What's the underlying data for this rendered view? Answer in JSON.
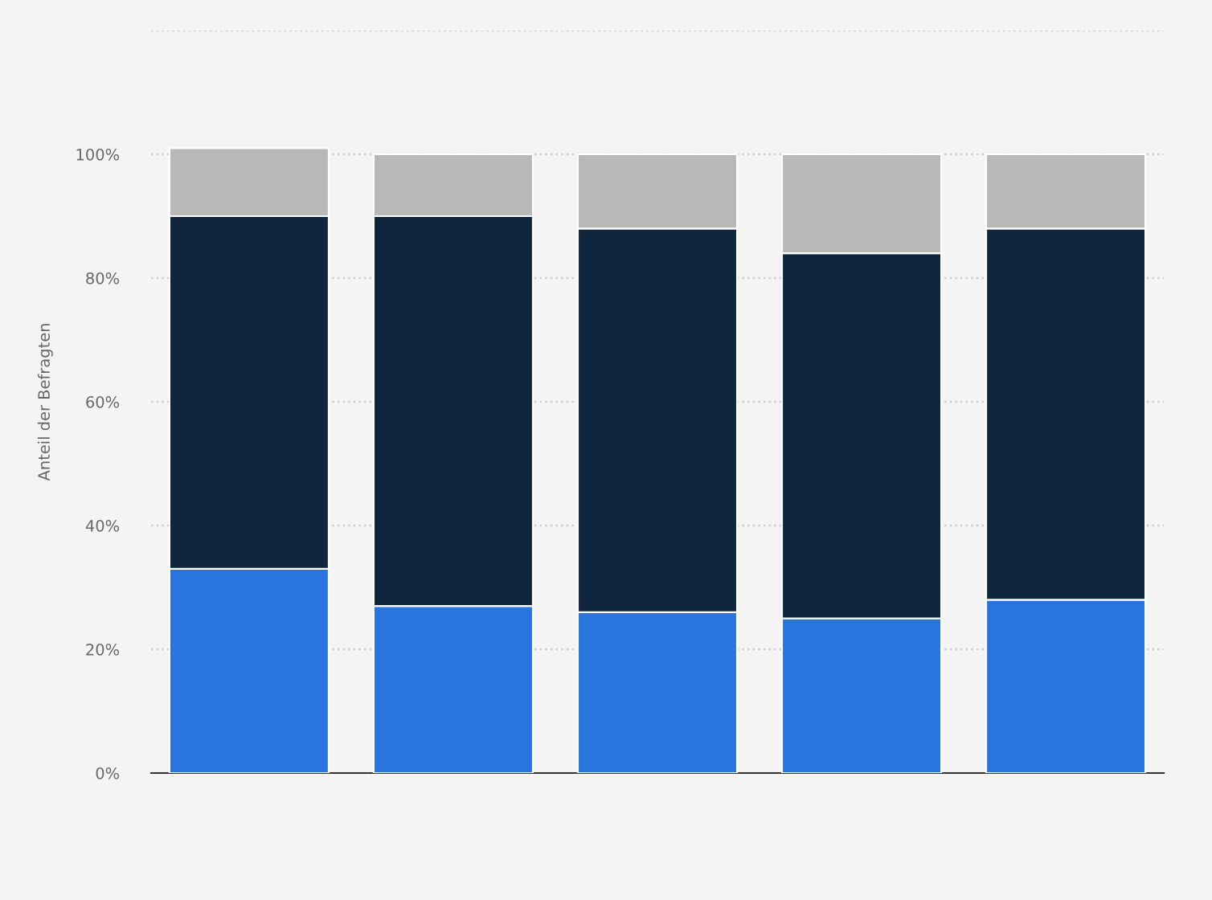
{
  "chart_data": {
    "type": "bar",
    "ylabel": "Anteil der Befragten",
    "stacked": true,
    "categories": [
      null,
      null,
      null,
      null,
      null
    ],
    "series": [
      {
        "color": "#2876dd",
        "values": [
          33,
          27,
          26,
          25,
          28
        ]
      },
      {
        "color": "#0f263d",
        "values": [
          57,
          63,
          62,
          59,
          60
        ]
      },
      {
        "color": "#b8b8b8",
        "values": [
          11,
          10,
          12,
          16,
          12
        ]
      }
    ],
    "ylim": [
      0,
      120
    ],
    "yticks": [
      {
        "value": 0,
        "label": "0%"
      },
      {
        "value": 20,
        "label": "20%"
      },
      {
        "value": 40,
        "label": "40%"
      },
      {
        "value": 60,
        "label": "60%"
      },
      {
        "value": 80,
        "label": "80%"
      },
      {
        "value": 100,
        "label": "100%"
      },
      {
        "value": 120,
        "label": null
      }
    ],
    "grid": "y",
    "legend": false
  }
}
